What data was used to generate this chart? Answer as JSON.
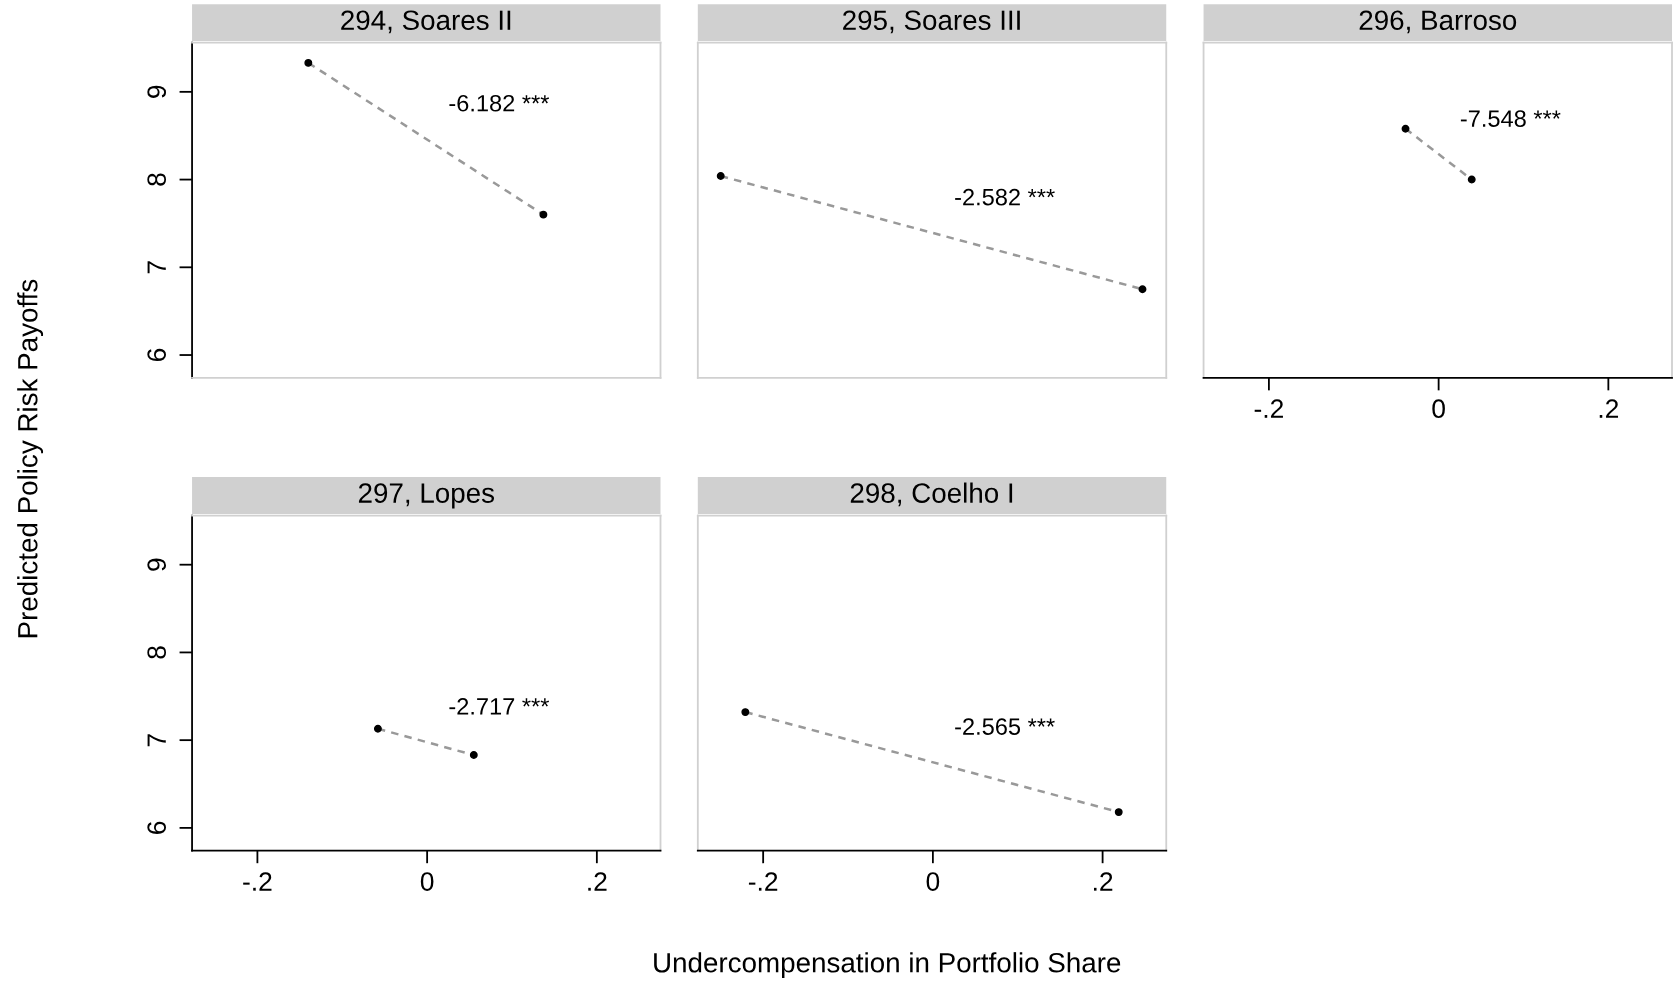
{
  "chart_data": [
    {
      "type": "line",
      "title": "294, Soares II",
      "ylabel": "Predicted Policy Risk Payoffs",
      "xlim": [
        -0.277,
        0.275
      ],
      "ylim": [
        5.74,
        9.56
      ],
      "yticks": [
        6,
        7,
        8,
        9
      ],
      "tick_labels": "y",
      "grid": false,
      "legend": false,
      "series": [
        {
          "color": "#999999",
          "line_style": "dashed",
          "marker": "none",
          "x": [
            -0.14,
            0.137
          ],
          "values": [
            9.33,
            7.6
          ]
        },
        {
          "type": "scatter",
          "color": "#000000",
          "marker": "circle",
          "x": [
            -0.14,
            0.137
          ],
          "values": [
            9.33,
            7.6
          ]
        }
      ],
      "annotations": [
        "-6.182 ***"
      ]
    },
    {
      "type": "line",
      "title": "295, Soares III",
      "xlim": [
        -0.277,
        0.275
      ],
      "ylim": [
        5.74,
        9.56
      ],
      "tick_labels": false,
      "grid": false,
      "legend": false,
      "series": [
        {
          "color": "#999999",
          "line_style": "dashed",
          "marker": "none",
          "x": [
            -0.25,
            0.247
          ],
          "values": [
            8.04,
            6.75
          ]
        },
        {
          "type": "scatter",
          "color": "#000000",
          "marker": "circle",
          "x": [
            -0.25,
            0.247
          ],
          "values": [
            8.04,
            6.75
          ]
        }
      ],
      "annotations": [
        "-2.582 ***"
      ]
    },
    {
      "type": "line",
      "title": "296, Barroso",
      "xlim": [
        -0.277,
        0.275
      ],
      "ylim": [
        5.74,
        9.56
      ],
      "xticks": [
        {
          "value": -0.2,
          "label": "-.2"
        },
        {
          "value": 0,
          "label": "0"
        },
        {
          "value": 0.2,
          "label": ".2"
        }
      ],
      "tick_labels": "x",
      "grid": false,
      "legend": false,
      "series": [
        {
          "color": "#999999",
          "line_style": "dashed",
          "marker": "none",
          "x": [
            -0.039,
            0.039
          ],
          "values": [
            8.58,
            8.0
          ]
        },
        {
          "type": "scatter",
          "color": "#000000",
          "marker": "circle",
          "x": [
            -0.039,
            0.039
          ],
          "values": [
            8.58,
            8.0
          ]
        }
      ],
      "annotations": [
        "-7.548 ***"
      ]
    },
    {
      "type": "line",
      "title": "297, Lopes",
      "xlim": [
        -0.277,
        0.275
      ],
      "ylim": [
        5.74,
        9.56
      ],
      "xticks": [
        {
          "value": -0.2,
          "label": "-.2"
        },
        {
          "value": 0,
          "label": "0"
        },
        {
          "value": 0.2,
          "label": ".2"
        }
      ],
      "yticks": [
        6,
        7,
        8,
        9
      ],
      "grid": false,
      "legend": false,
      "series": [
        {
          "color": "#999999",
          "line_style": "dashed",
          "marker": "none",
          "x": [
            -0.058,
            0.055
          ],
          "values": [
            7.13,
            6.83
          ]
        },
        {
          "type": "scatter",
          "color": "#000000",
          "marker": "circle",
          "x": [
            -0.058,
            0.055
          ],
          "values": [
            7.13,
            6.83
          ]
        }
      ],
      "annotations": [
        "-2.717 ***"
      ]
    },
    {
      "type": "line",
      "title": "298, Coelho I",
      "xlabel": "Undercompensation in Portfolio Share",
      "xlim": [
        -0.277,
        0.275
      ],
      "ylim": [
        5.74,
        9.56
      ],
      "xticks": [
        {
          "value": -0.2,
          "label": "-.2"
        },
        {
          "value": 0,
          "label": "0"
        },
        {
          "value": 0.2,
          "label": ".2"
        }
      ],
      "tick_labels": "x",
      "grid": false,
      "legend": false,
      "series": [
        {
          "color": "#999999",
          "line_style": "dashed",
          "marker": "none",
          "x": [
            -0.221,
            0.219
          ],
          "values": [
            7.32,
            6.18
          ]
        },
        {
          "type": "scatter",
          "color": "#000000",
          "marker": "circle",
          "x": [
            -0.221,
            0.219
          ],
          "values": [
            7.32,
            6.18
          ]
        }
      ],
      "annotations": [
        "-2.565 ***"
      ]
    }
  ]
}
